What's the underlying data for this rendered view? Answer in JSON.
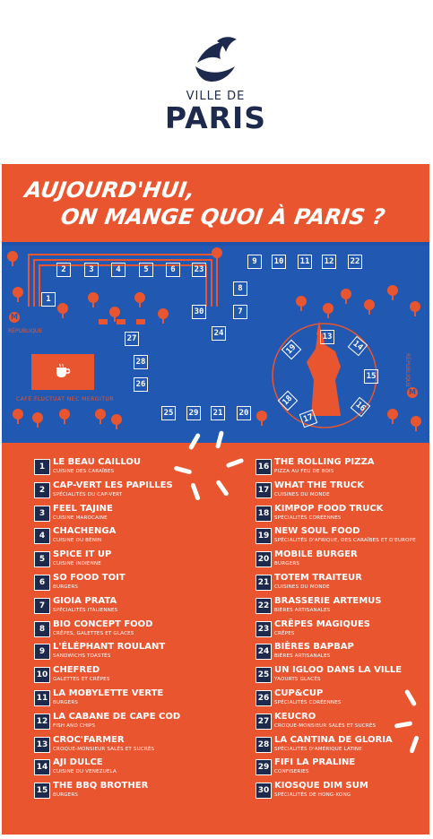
{
  "brand": {
    "ville_de": "VILLE DE",
    "paris": "PARIS"
  },
  "headline": {
    "line1": "AUJOURD'HUI,",
    "line2": "ON MANGE QUOI À PARIS ?"
  },
  "map": {
    "republique_left": "RÉPUBLIQUE",
    "republique_right": "RÉPUBLIQUE",
    "cafe": "CAFÉ FLUCTUAT NEC MERGITUR",
    "stall_numbers": [
      "2",
      "3",
      "4",
      "5",
      "6",
      "23",
      "1",
      "8",
      "7",
      "30",
      "24",
      "27",
      "28",
      "26",
      "25",
      "29",
      "21",
      "20",
      "9",
      "10",
      "11",
      "12",
      "22",
      "13",
      "14",
      "15",
      "16",
      "17",
      "18",
      "19"
    ]
  },
  "vendors": [
    {
      "n": "1",
      "name": "LE BEAU CAILLOU",
      "desc": "CUISINE DES CARAÏBES"
    },
    {
      "n": "2",
      "name": "CAP-VERT LES PAPILLES",
      "desc": "SPÉCIALITÉS DU CAP-VERT"
    },
    {
      "n": "3",
      "name": "FEEL TAJINE",
      "desc": "CUISINE MAROCAINE"
    },
    {
      "n": "4",
      "name": "CHACHENGA",
      "desc": "CUISINE DU BÉNIN"
    },
    {
      "n": "5",
      "name": "SPICE IT UP",
      "desc": "CUISINE INDIENNE"
    },
    {
      "n": "6",
      "name": "SO FOOD TOIT",
      "desc": "BURGERS"
    },
    {
      "n": "7",
      "name": "GIOIA PRATA",
      "desc": "SPÉCIALITÉS ITALIENNES"
    },
    {
      "n": "8",
      "name": "BIO CONCEPT FOOD",
      "desc": "CRÊPES, GALETTES ET GLACES"
    },
    {
      "n": "9",
      "name": "L'ÉLÉPHANT ROULANT",
      "desc": "SANDWICHS TOASTÉS"
    },
    {
      "n": "10",
      "name": "CHEFRED",
      "desc": "GALETTES ET CRÊPES"
    },
    {
      "n": "11",
      "name": "LA MOBYLETTE VERTE",
      "desc": "BURGERS"
    },
    {
      "n": "12",
      "name": "LA CABANE DE CAPE COD",
      "desc": "FISH AND CHIPS"
    },
    {
      "n": "13",
      "name": "CROC'FARMER",
      "desc": "CROQUE-MONSIEUR SALÉS ET SUCRÉS"
    },
    {
      "n": "14",
      "name": "AJI DULCE",
      "desc": "CUISINE DU VENEZUELA"
    },
    {
      "n": "15",
      "name": "THE BBQ BROTHER",
      "desc": "BURGERS"
    },
    {
      "n": "16",
      "name": "THE ROLLING PIZZA",
      "desc": "PIZZA AU FEU DE BOIS"
    },
    {
      "n": "17",
      "name": "WHAT THE TRUCK",
      "desc": "CUISINES DU MONDE"
    },
    {
      "n": "18",
      "name": "KIMPOP FOOD TRUCK",
      "desc": "SPÉCIALITÉS CORÉENNES"
    },
    {
      "n": "19",
      "name": "NEW SOUL FOOD",
      "desc": "SPÉCIALITÉS D'AFRIQUE, DES CARAÏBES ET D'EUROPE"
    },
    {
      "n": "20",
      "name": "MOBILE BURGER",
      "desc": "BURGERS"
    },
    {
      "n": "21",
      "name": "TOTEM TRAITEUR",
      "desc": "CUISINES DU MONDE"
    },
    {
      "n": "22",
      "name": "BRASSERIE ARTEMUS",
      "desc": "BIÈRES ARTISANALES"
    },
    {
      "n": "23",
      "name": "CRÊPES MAGIQUES",
      "desc": "CRÊPES"
    },
    {
      "n": "24",
      "name": "BIÈRES BAPBAP",
      "desc": "BIÈRES ARTISANALES"
    },
    {
      "n": "25",
      "name": "UN IGLOO DANS LA VILLE",
      "desc": "YAOURTS GLACÉS"
    },
    {
      "n": "26",
      "name": "CUP&CUP",
      "desc": "SPÉCIALITÉS CORÉENNES"
    },
    {
      "n": "27",
      "name": "KEUCRO",
      "desc": "CROQUE-MONSIEUR SALÉS ET SUCRÉS"
    },
    {
      "n": "28",
      "name": "LA CANTINA DE GLORIA",
      "desc": "SPÉCIALITÉS D'AMÉRIQUE LATINE"
    },
    {
      "n": "29",
      "name": "FIFI LA PRALINE",
      "desc": "CONFISERIES"
    },
    {
      "n": "30",
      "name": "KIOSQUE DIM SUM",
      "desc": "SPÉCIALITÉS DE HONG-KONG"
    }
  ],
  "colors": {
    "orange": "#e9552f",
    "blue": "#2158b1",
    "navy": "#1d2a4d"
  }
}
